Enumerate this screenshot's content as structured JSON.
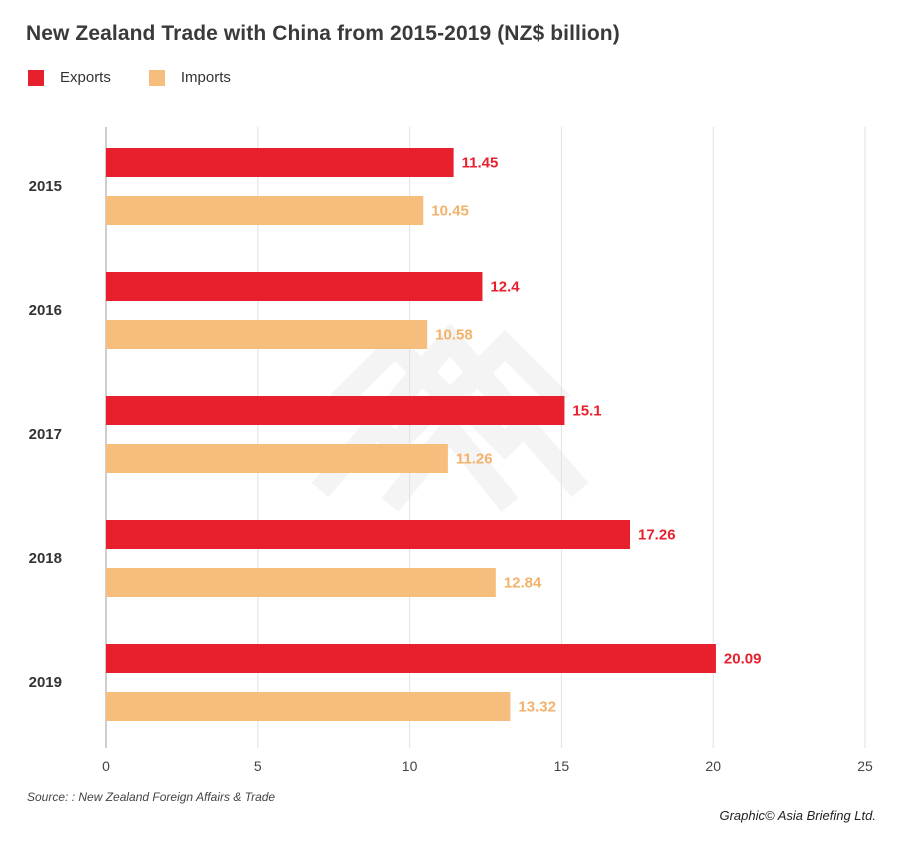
{
  "title": "New Zealand Trade with China from 2015-2019 (NZ$ billion)",
  "legend": {
    "exports": "Exports",
    "imports": "Imports"
  },
  "colors": {
    "exports": "#e8202e",
    "imports": "#f6bd7c",
    "grid": "#e2e2e2",
    "axis": "#bdbdbd",
    "exports_label": "#e8202e",
    "imports_label": "#f2b26a"
  },
  "source": "Source: : New Zealand Foreign Affairs & Trade",
  "credit": "Graphic© Asia Briefing Ltd.",
  "chart_data": {
    "type": "bar",
    "orientation": "horizontal",
    "title": "New Zealand Trade with China from 2015-2019 (NZ$ billion)",
    "categories": [
      "2015",
      "2016",
      "2017",
      "2018",
      "2019"
    ],
    "series": [
      {
        "name": "Exports",
        "values": [
          11.45,
          12.4,
          15.1,
          17.26,
          20.09
        ],
        "labels": [
          "11.45",
          "12.4",
          "15.1",
          "17.26",
          "20.09"
        ]
      },
      {
        "name": "Imports",
        "values": [
          10.45,
          10.58,
          11.26,
          12.84,
          13.32
        ],
        "labels": [
          "10.45",
          "10.58",
          "11.26",
          "12.84",
          "13.32"
        ]
      }
    ],
    "xlim": [
      0,
      25
    ],
    "xticks": [
      "0",
      "5",
      "10",
      "15",
      "20",
      "25"
    ],
    "xlabel": "",
    "ylabel": "",
    "grid": true,
    "legend_position": "top-left"
  }
}
